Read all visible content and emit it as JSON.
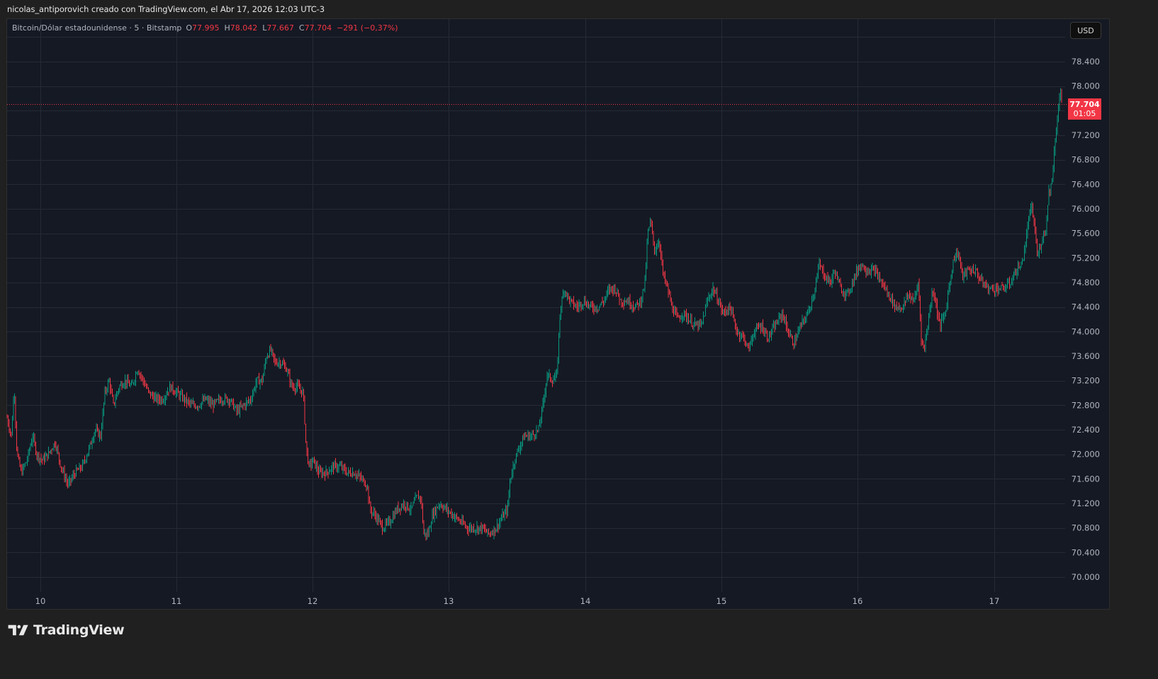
{
  "header": {
    "credit": "nicolas_antiporovich creado con TradingView.com, el Abr 17, 2026 12:03 UTC-3"
  },
  "legend": {
    "symbol": "Bitcoin/Dólar estadounidense · 5 · Bitstamp",
    "open_label": "O",
    "open": "77.995",
    "high_label": "H",
    "high": "78.042",
    "low_label": "L",
    "low": "77.667",
    "close_label": "C",
    "close": "77.704",
    "change": "−291 (−0,37%)"
  },
  "currency_button": "USD",
  "last_price": {
    "value": "77.704",
    "countdown": "01:05"
  },
  "brand": {
    "name": "TradingView",
    "icon": "tradingview-logo-icon"
  },
  "colors": {
    "background": "#151923",
    "page": "#202020",
    "grid": "#262a35",
    "up": "#089981",
    "down": "#f23645",
    "axis_text": "#b2b5be"
  },
  "chart_data": {
    "type": "candlestick",
    "title": "Bitcoin/Dólar estadounidense · 5 · Bitstamp",
    "interval": "5 min",
    "currency": "USD",
    "xlabel": "",
    "ylabel": "",
    "ylim": [
      69600,
      78900
    ],
    "grid": true,
    "price_ticks": [
      "78.400",
      "78.000",
      "77.200",
      "76.800",
      "76.400",
      "76.000",
      "75.600",
      "75.200",
      "74.800",
      "74.400",
      "74.000",
      "73.600",
      "73.200",
      "72.800",
      "72.400",
      "72.000",
      "71.600",
      "71.200",
      "70.800",
      "70.400",
      "70.000"
    ],
    "price_tick_values": [
      78400,
      78000,
      77200,
      76800,
      76400,
      76000,
      75600,
      75200,
      74800,
      74400,
      74000,
      73600,
      73200,
      72800,
      72400,
      72000,
      71600,
      71200,
      70800,
      70400,
      70000
    ],
    "time_ticks": [
      "10",
      "11",
      "12",
      "13",
      "14",
      "15",
      "16",
      "17"
    ],
    "time_tick_x": [
      57,
      249,
      441,
      633,
      826,
      1018,
      1210,
      1403
    ],
    "last_price": 77704,
    "ohlc_last": {
      "open": 77995,
      "high": 78042,
      "low": 77667,
      "close": 77704
    },
    "path_note": "approximate close path sampled at key points (x pixel, price)",
    "path": [
      [
        10,
        72600
      ],
      [
        16,
        72300
      ],
      [
        20,
        73100
      ],
      [
        24,
        72000
      ],
      [
        30,
        71700
      ],
      [
        38,
        71900
      ],
      [
        46,
        72300
      ],
      [
        52,
        72000
      ],
      [
        60,
        71900
      ],
      [
        68,
        72000
      ],
      [
        78,
        72200
      ],
      [
        86,
        71800
      ],
      [
        96,
        71500
      ],
      [
        106,
        71700
      ],
      [
        116,
        71800
      ],
      [
        126,
        72100
      ],
      [
        134,
        72400
      ],
      [
        142,
        72300
      ],
      [
        148,
        73000
      ],
      [
        154,
        73200
      ],
      [
        160,
        72800
      ],
      [
        168,
        73100
      ],
      [
        176,
        73200
      ],
      [
        186,
        73100
      ],
      [
        194,
        73400
      ],
      [
        202,
        73200
      ],
      [
        210,
        73000
      ],
      [
        220,
        72900
      ],
      [
        230,
        72900
      ],
      [
        240,
        73100
      ],
      [
        250,
        73000
      ],
      [
        260,
        72900
      ],
      [
        270,
        72800
      ],
      [
        280,
        72800
      ],
      [
        290,
        72900
      ],
      [
        300,
        72800
      ],
      [
        312,
        72900
      ],
      [
        324,
        72900
      ],
      [
        334,
        72700
      ],
      [
        344,
        72800
      ],
      [
        354,
        72900
      ],
      [
        362,
        73200
      ],
      [
        370,
        73200
      ],
      [
        376,
        73600
      ],
      [
        382,
        73700
      ],
      [
        388,
        73500
      ],
      [
        396,
        73500
      ],
      [
        404,
        73400
      ],
      [
        412,
        73100
      ],
      [
        420,
        73100
      ],
      [
        428,
        73000
      ],
      [
        432,
        72100
      ],
      [
        436,
        71800
      ],
      [
        442,
        71900
      ],
      [
        450,
        71700
      ],
      [
        460,
        71700
      ],
      [
        470,
        71800
      ],
      [
        480,
        71800
      ],
      [
        490,
        71700
      ],
      [
        500,
        71700
      ],
      [
        510,
        71600
      ],
      [
        518,
        71500
      ],
      [
        522,
        71100
      ],
      [
        530,
        71000
      ],
      [
        540,
        70800
      ],
      [
        550,
        70900
      ],
      [
        560,
        71100
      ],
      [
        570,
        71200
      ],
      [
        580,
        71100
      ],
      [
        588,
        71300
      ],
      [
        594,
        71300
      ],
      [
        598,
        70700
      ],
      [
        604,
        70700
      ],
      [
        610,
        71000
      ],
      [
        620,
        71200
      ],
      [
        630,
        71100
      ],
      [
        640,
        71000
      ],
      [
        650,
        70900
      ],
      [
        660,
        70800
      ],
      [
        670,
        70800
      ],
      [
        680,
        70800
      ],
      [
        690,
        70700
      ],
      [
        700,
        70800
      ],
      [
        710,
        71000
      ],
      [
        716,
        71100
      ],
      [
        720,
        71600
      ],
      [
        726,
        71900
      ],
      [
        732,
        72100
      ],
      [
        740,
        72300
      ],
      [
        750,
        72300
      ],
      [
        760,
        72400
      ],
      [
        766,
        72800
      ],
      [
        772,
        73300
      ],
      [
        780,
        73200
      ],
      [
        786,
        73300
      ],
      [
        790,
        74300
      ],
      [
        796,
        74700
      ],
      [
        804,
        74500
      ],
      [
        814,
        74400
      ],
      [
        824,
        74500
      ],
      [
        834,
        74400
      ],
      [
        844,
        74400
      ],
      [
        852,
        74500
      ],
      [
        860,
        74700
      ],
      [
        868,
        74700
      ],
      [
        876,
        74500
      ],
      [
        886,
        74500
      ],
      [
        896,
        74400
      ],
      [
        904,
        74500
      ],
      [
        910,
        74800
      ],
      [
        914,
        75600
      ],
      [
        918,
        75800
      ],
      [
        924,
        75300
      ],
      [
        930,
        75500
      ],
      [
        936,
        74900
      ],
      [
        942,
        74700
      ],
      [
        948,
        74400
      ],
      [
        956,
        74200
      ],
      [
        964,
        74300
      ],
      [
        972,
        74200
      ],
      [
        980,
        74100
      ],
      [
        990,
        74100
      ],
      [
        998,
        74500
      ],
      [
        1006,
        74700
      ],
      [
        1014,
        74500
      ],
      [
        1020,
        74300
      ],
      [
        1030,
        74400
      ],
      [
        1040,
        74000
      ],
      [
        1050,
        73900
      ],
      [
        1056,
        73700
      ],
      [
        1064,
        74000
      ],
      [
        1074,
        74100
      ],
      [
        1084,
        73900
      ],
      [
        1094,
        74100
      ],
      [
        1104,
        74300
      ],
      [
        1112,
        74000
      ],
      [
        1120,
        73800
      ],
      [
        1130,
        74100
      ],
      [
        1140,
        74300
      ],
      [
        1150,
        74700
      ],
      [
        1156,
        75100
      ],
      [
        1164,
        74900
      ],
      [
        1172,
        74800
      ],
      [
        1178,
        75000
      ],
      [
        1186,
        74700
      ],
      [
        1196,
        74600
      ],
      [
        1206,
        74900
      ],
      [
        1214,
        75100
      ],
      [
        1224,
        75000
      ],
      [
        1234,
        75000
      ],
      [
        1244,
        74800
      ],
      [
        1254,
        74600
      ],
      [
        1264,
        74400
      ],
      [
        1274,
        74400
      ],
      [
        1282,
        74600
      ],
      [
        1290,
        74500
      ],
      [
        1296,
        74800
      ],
      [
        1300,
        73900
      ],
      [
        1304,
        73700
      ],
      [
        1310,
        74200
      ],
      [
        1316,
        74700
      ],
      [
        1320,
        74500
      ],
      [
        1326,
        74100
      ],
      [
        1334,
        74300
      ],
      [
        1340,
        74800
      ],
      [
        1346,
        75200
      ],
      [
        1352,
        75300
      ],
      [
        1358,
        74900
      ],
      [
        1366,
        75000
      ],
      [
        1376,
        75000
      ],
      [
        1386,
        74800
      ],
      [
        1396,
        74700
      ],
      [
        1406,
        74700
      ],
      [
        1416,
        74700
      ],
      [
        1426,
        74800
      ],
      [
        1434,
        75000
      ],
      [
        1442,
        75100
      ],
      [
        1448,
        75500
      ],
      [
        1452,
        75900
      ],
      [
        1456,
        76000
      ],
      [
        1460,
        75700
      ],
      [
        1464,
        75200
      ],
      [
        1470,
        75500
      ],
      [
        1476,
        75700
      ],
      [
        1480,
        76300
      ],
      [
        1484,
        76400
      ],
      [
        1488,
        77000
      ],
      [
        1492,
        77500
      ],
      [
        1496,
        77900
      ],
      [
        1499,
        77704
      ]
    ]
  }
}
